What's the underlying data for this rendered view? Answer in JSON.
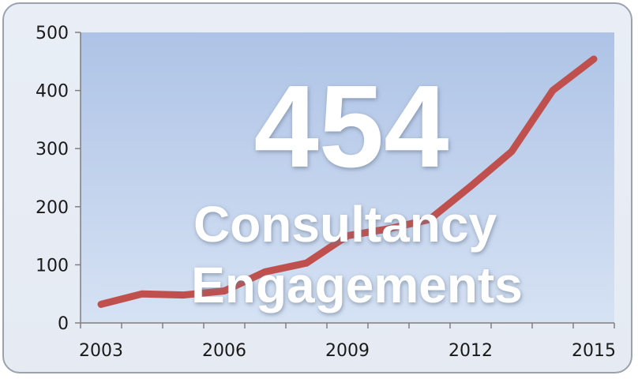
{
  "chart_data": {
    "type": "line",
    "title": "",
    "xlabel": "",
    "ylabel": "",
    "x": [
      2003,
      2004,
      2005,
      2006,
      2007,
      2008,
      2009,
      2010,
      2011,
      2012,
      2013,
      2014,
      2015
    ],
    "series": [
      {
        "values": [
          32,
          50,
          48,
          55,
          88,
          103,
          150,
          162,
          178,
          235,
          295,
          400,
          454
        ],
        "color": "#c0504d"
      }
    ],
    "xlim": [
      2002.5,
      2015.5
    ],
    "ylim": [
      0,
      500
    ],
    "yticks": [
      0,
      100,
      200,
      300,
      400,
      500
    ],
    "xtick_labels": [
      "2003",
      "2006",
      "2009",
      "2012",
      "2015"
    ],
    "grid": false,
    "legend": "none"
  },
  "overlay": {
    "big_number": "454",
    "line1": "Consultancy",
    "line2": "Engagements"
  },
  "colors": {
    "plot_area_top": "#aec3e6",
    "plot_area_bottom": "#d6e2f4",
    "series_line": "#c0504d",
    "axis": "#7f7f7f"
  }
}
